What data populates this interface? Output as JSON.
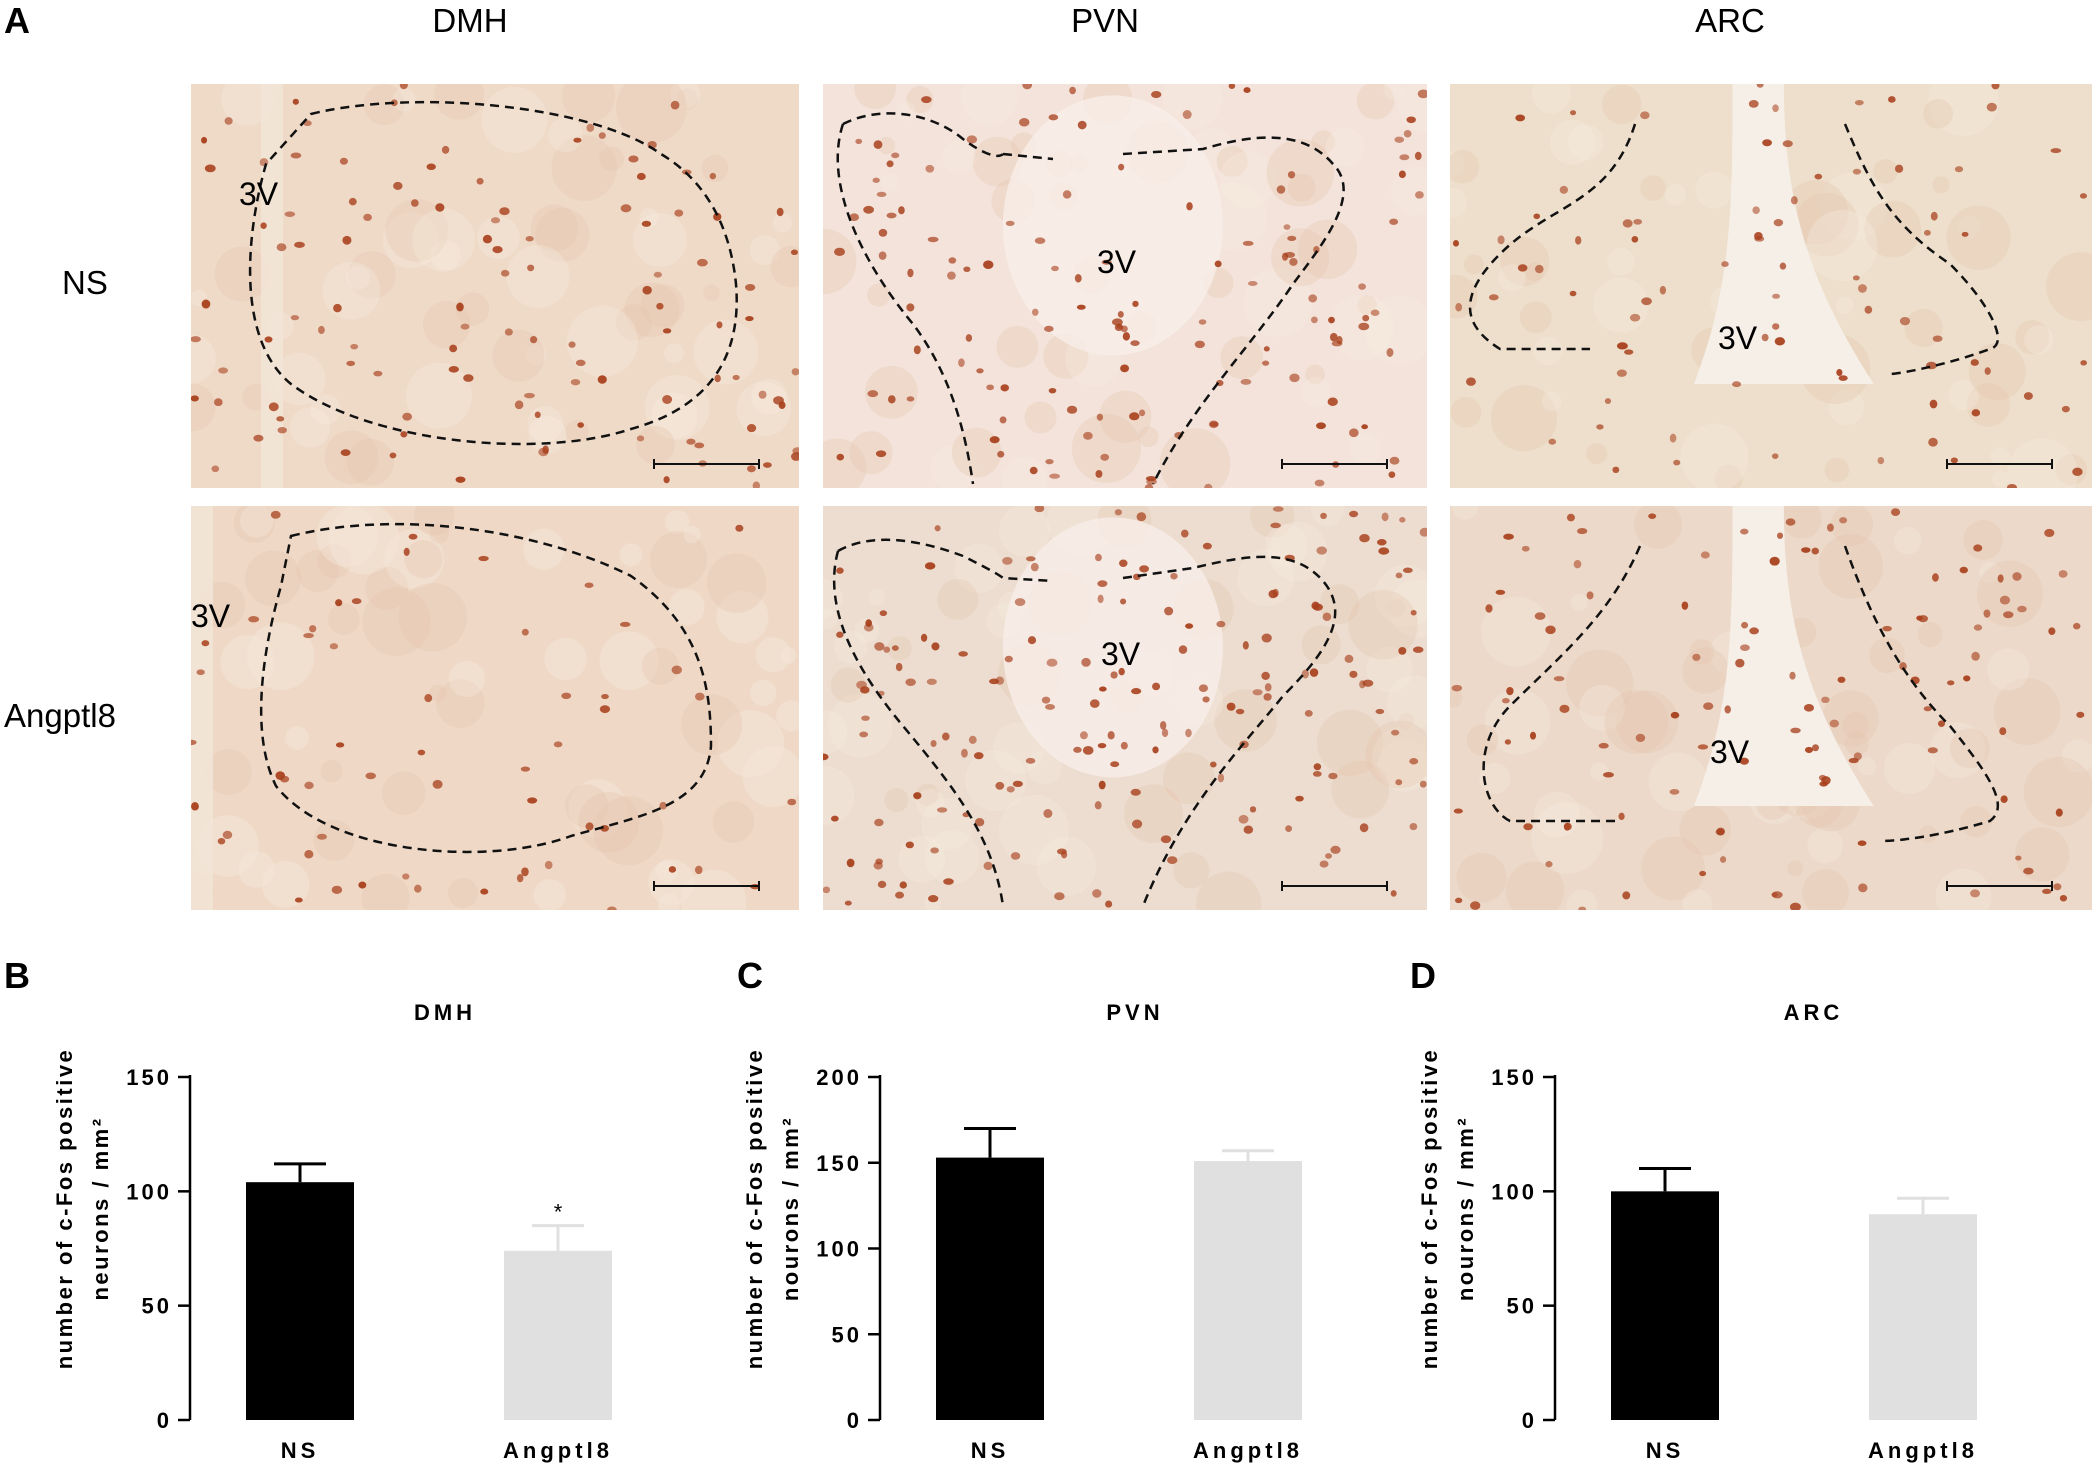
{
  "figure": {
    "panel_letters": {
      "a": "A",
      "b": "B",
      "c": "C",
      "d": "D"
    },
    "columns": [
      "DMH",
      "PVN",
      "ARC"
    ],
    "rows": [
      "NS",
      "Angptl8"
    ],
    "ventricle_label": "3V"
  },
  "colors": {
    "ns_bar": "#000000",
    "angptl8_bar": "#e0e0e0",
    "tissue_bg": "#efd9c6",
    "nucleus": "#a8401c"
  },
  "chart_data": [
    {
      "type": "bar",
      "title": "DMH",
      "ylabel": [
        "number of c-Fos positive",
        "neurons / mm²"
      ],
      "categories": [
        "NS",
        "Angptl8"
      ],
      "values": [
        104,
        74
      ],
      "errors": [
        8,
        11
      ],
      "annotations": [
        "",
        "*"
      ],
      "yticks": [
        "0",
        "50",
        "100",
        "150"
      ],
      "ylim": [
        0,
        150
      ]
    },
    {
      "type": "bar",
      "title": "PVN",
      "ylabel": [
        "number of c-Fos positive",
        "nourons / mm²"
      ],
      "categories": [
        "NS",
        "Angptl8"
      ],
      "values": [
        153,
        151
      ],
      "errors": [
        17,
        6
      ],
      "annotations": [
        "",
        ""
      ],
      "yticks": [
        "0",
        "50",
        "100",
        "150",
        "200"
      ],
      "ylim": [
        0,
        200
      ]
    },
    {
      "type": "bar",
      "title": "ARC",
      "ylabel": [
        "number of c-Fos positive",
        "nourons / mm²"
      ],
      "categories": [
        "NS",
        "Angptl8"
      ],
      "values": [
        100,
        90
      ],
      "errors": [
        10,
        7
      ],
      "annotations": [
        "",
        ""
      ],
      "yticks": [
        "0",
        "50",
        "100",
        "150"
      ],
      "ylim": [
        0,
        150
      ]
    }
  ]
}
